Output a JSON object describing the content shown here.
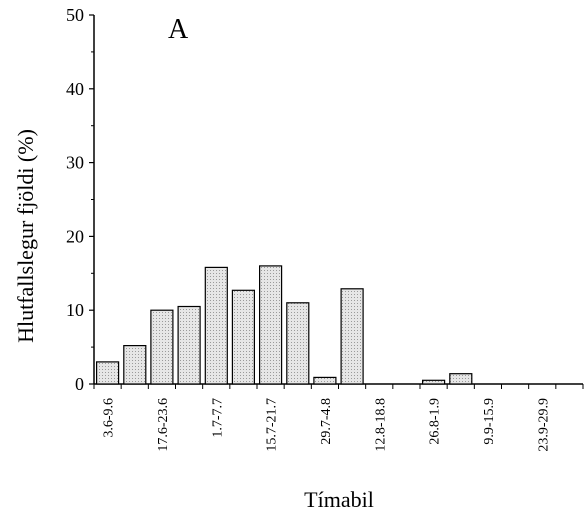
{
  "chart_data": {
    "type": "bar",
    "panel_label": "A",
    "xlabel": "Tímabil",
    "ylabel": "Hlutfallslegur fjöldi (%)",
    "ylim": [
      0,
      50
    ],
    "yticks": [
      0,
      10,
      20,
      30,
      40,
      50
    ],
    "categories": [
      "3.6-9.6",
      "",
      "17.6-23.6",
      "",
      "1.7-7.7",
      "",
      "15.7-21.7",
      "",
      "29.7-4.8",
      "",
      "12.8-18.8",
      "",
      "26.8-1.9",
      "",
      "9.9-15.9",
      "",
      "23.9-29.9",
      ""
    ],
    "values": [
      3.0,
      5.2,
      10.0,
      10.5,
      15.8,
      12.7,
      16.0,
      11.0,
      0.9,
      12.9,
      0,
      0,
      0.5,
      1.4,
      0,
      0,
      0,
      0
    ],
    "grid": false,
    "colors": {
      "bar_fill": "#dcdcdc",
      "bar_stroke": "#000000"
    }
  }
}
